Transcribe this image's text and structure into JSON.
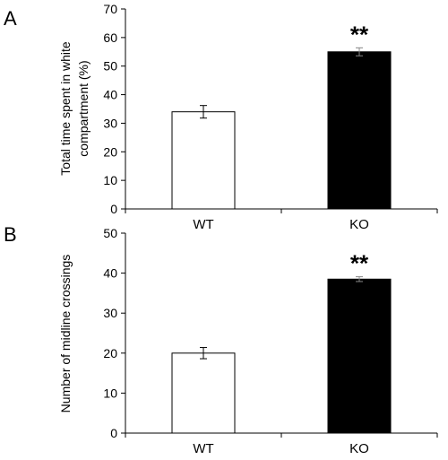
{
  "chart_data": [
    {
      "panel": "A",
      "type": "bar",
      "categories": [
        "WT",
        "KO"
      ],
      "values": [
        34,
        55
      ],
      "errors": [
        2.2,
        1.4
      ],
      "bar_colors": [
        "#ffffff",
        "#000000"
      ],
      "significance": [
        "",
        "**"
      ],
      "ylabel_lines": [
        "Total time spent in white",
        "compartment (%)"
      ],
      "ylim": [
        0,
        70
      ],
      "yticks": [
        0,
        10,
        20,
        30,
        40,
        50,
        60,
        70
      ],
      "grid": false
    },
    {
      "panel": "B",
      "type": "bar",
      "categories": [
        "WT",
        "KO"
      ],
      "values": [
        20,
        38.5
      ],
      "errors": [
        1.4,
        0.6
      ],
      "bar_colors": [
        "#ffffff",
        "#000000"
      ],
      "significance": [
        "",
        "**"
      ],
      "ylabel_lines": [
        "Number of midline crossings"
      ],
      "ylim": [
        0,
        50
      ],
      "yticks": [
        0,
        10,
        20,
        30,
        40,
        50
      ],
      "grid": false
    }
  ]
}
